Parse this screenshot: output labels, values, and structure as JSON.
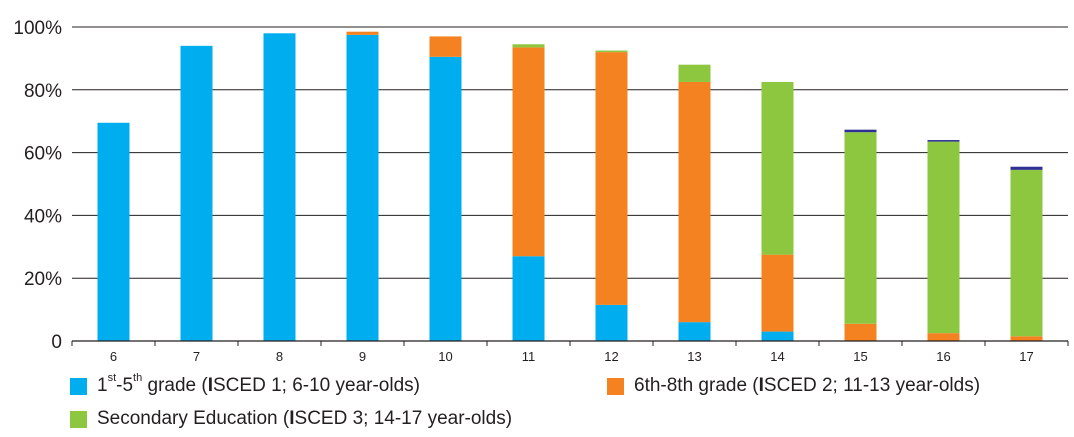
{
  "chart_data": {
    "type": "bar",
    "stacked": true,
    "categories": [
      "6",
      "7",
      "8",
      "9",
      "10",
      "11",
      "12",
      "13",
      "14",
      "15",
      "16",
      "17"
    ],
    "series": [
      {
        "name": "1st-5th grade (ISCED 1; 6-10 year-olds)",
        "color": "#00adee",
        "values": [
          69.5,
          94,
          98,
          97.5,
          90.5,
          27,
          11.5,
          6,
          3,
          0,
          0,
          0
        ]
      },
      {
        "name": "6th-8th grade (ISCED 2; 11-13 year-olds)",
        "color": "#f58220",
        "values": [
          0,
          0,
          0,
          1,
          6.5,
          66.5,
          80.5,
          76.5,
          24.5,
          5.5,
          2.5,
          1.5
        ]
      },
      {
        "name": "Secondary Education (ISCED 3; 14-17 year-olds)",
        "color": "#8dc63f",
        "values": [
          0,
          0,
          0,
          0,
          0,
          1,
          0.5,
          5.5,
          55,
          61,
          61,
          53
        ]
      },
      {
        "color": "#2e3192",
        "values": [
          0,
          0,
          0,
          0,
          0,
          0,
          0,
          0,
          0,
          0.8,
          0.5,
          1
        ]
      }
    ],
    "yticks": [
      "0",
      "20%",
      "40%",
      "60%",
      "80%",
      "100%"
    ],
    "ylim": [
      0,
      100
    ],
    "grid": true,
    "legend_position": "bottom"
  },
  "legend": [
    {
      "pre": "1",
      "sup1": "st",
      "mid": "-5",
      "sup2": "th",
      "post": " grade (",
      "bold": "I",
      "rest": "SCED 1; 6-10 year-olds)"
    },
    {
      "pre": "6th-8th grade (",
      "bold": "I",
      "rest": "SCED 2; 11-13 year-olds)"
    },
    {
      "pre": "Secondary Education (",
      "bold": "I",
      "rest": "SCED 3; 14-17 year-olds)"
    }
  ],
  "colors": {
    "grid": "#231f20",
    "axis": "#231f20"
  }
}
